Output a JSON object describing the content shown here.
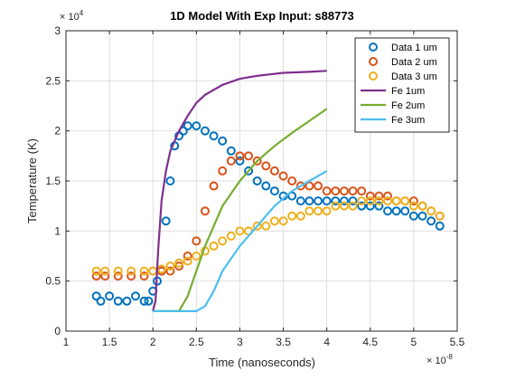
{
  "chart_data": {
    "type": "scatter",
    "title": "1D Model With Exp Input: s88773",
    "xlabel": "Time (nanoseconds)",
    "ylabel": "Temperature (K)",
    "x_multiplier_label": "× 10",
    "x_multiplier_exp": "-8",
    "y_multiplier_label": "× 10",
    "y_multiplier_exp": "4",
    "xlim": [
      1,
      5.5
    ],
    "ylim": [
      0,
      3
    ],
    "xticks": [
      1,
      1.5,
      2,
      2.5,
      3,
      3.5,
      4,
      4.5,
      5,
      5.5
    ],
    "xtick_labels": [
      "1",
      "1.5",
      "2",
      "2.5",
      "3",
      "3.5",
      "4",
      "4.5",
      "5",
      "5.5"
    ],
    "yticks": [
      0,
      0.5,
      1,
      1.5,
      2,
      2.5,
      3
    ],
    "ytick_labels": [
      "0",
      "0.5",
      "1",
      "1.5",
      "2",
      "2.5",
      "3"
    ],
    "grid": true,
    "legend_position": "top-right",
    "series": [
      {
        "name": "Data 1 um",
        "kind": "markers",
        "color": "#0072BD",
        "points": [
          [
            1.35,
            0.35
          ],
          [
            1.4,
            0.3
          ],
          [
            1.5,
            0.35
          ],
          [
            1.6,
            0.3
          ],
          [
            1.7,
            0.3
          ],
          [
            1.8,
            0.35
          ],
          [
            1.9,
            0.3
          ],
          [
            1.95,
            0.3
          ],
          [
            2.0,
            0.4
          ],
          [
            2.05,
            0.5
          ],
          [
            2.1,
            0.6
          ],
          [
            2.15,
            1.1
          ],
          [
            2.2,
            1.5
          ],
          [
            2.25,
            1.85
          ],
          [
            2.3,
            1.95
          ],
          [
            2.35,
            2.0
          ],
          [
            2.4,
            2.05
          ],
          [
            2.5,
            2.05
          ],
          [
            2.6,
            2.0
          ],
          [
            2.7,
            1.95
          ],
          [
            2.8,
            1.9
          ],
          [
            2.9,
            1.8
          ],
          [
            3.0,
            1.7
          ],
          [
            3.1,
            1.6
          ],
          [
            3.2,
            1.5
          ],
          [
            3.3,
            1.45
          ],
          [
            3.4,
            1.4
          ],
          [
            3.5,
            1.35
          ],
          [
            3.6,
            1.35
          ],
          [
            3.7,
            1.3
          ],
          [
            3.8,
            1.3
          ],
          [
            3.9,
            1.3
          ],
          [
            4.0,
            1.3
          ],
          [
            4.1,
            1.3
          ],
          [
            4.2,
            1.3
          ],
          [
            4.3,
            1.3
          ],
          [
            4.4,
            1.25
          ],
          [
            4.5,
            1.25
          ],
          [
            4.6,
            1.25
          ],
          [
            4.7,
            1.2
          ],
          [
            4.8,
            1.2
          ],
          [
            4.9,
            1.2
          ],
          [
            5.0,
            1.15
          ],
          [
            5.1,
            1.15
          ],
          [
            5.2,
            1.1
          ],
          [
            5.3,
            1.05
          ]
        ]
      },
      {
        "name": "Data 2 um",
        "kind": "markers",
        "color": "#D95319",
        "points": [
          [
            1.35,
            0.55
          ],
          [
            1.45,
            0.55
          ],
          [
            1.6,
            0.55
          ],
          [
            1.75,
            0.55
          ],
          [
            1.9,
            0.55
          ],
          [
            2.0,
            0.6
          ],
          [
            2.1,
            0.6
          ],
          [
            2.2,
            0.6
          ],
          [
            2.3,
            0.65
          ],
          [
            2.4,
            0.75
          ],
          [
            2.5,
            0.9
          ],
          [
            2.6,
            1.2
          ],
          [
            2.7,
            1.45
          ],
          [
            2.8,
            1.6
          ],
          [
            2.9,
            1.7
          ],
          [
            3.0,
            1.75
          ],
          [
            3.1,
            1.75
          ],
          [
            3.2,
            1.7
          ],
          [
            3.3,
            1.65
          ],
          [
            3.4,
            1.6
          ],
          [
            3.5,
            1.55
          ],
          [
            3.6,
            1.5
          ],
          [
            3.7,
            1.45
          ],
          [
            3.8,
            1.45
          ],
          [
            3.9,
            1.45
          ],
          [
            4.0,
            1.4
          ],
          [
            4.1,
            1.4
          ],
          [
            4.2,
            1.4
          ],
          [
            4.3,
            1.4
          ],
          [
            4.4,
            1.4
          ],
          [
            4.5,
            1.35
          ],
          [
            4.6,
            1.35
          ],
          [
            4.7,
            1.35
          ],
          [
            4.8,
            1.3
          ],
          [
            4.9,
            1.3
          ],
          [
            5.0,
            1.3
          ],
          [
            5.1,
            1.25
          ],
          [
            5.2,
            1.2
          ],
          [
            5.3,
            1.15
          ]
        ]
      },
      {
        "name": "Data 3 um",
        "kind": "markers",
        "color": "#EDB120",
        "points": [
          [
            1.35,
            0.6
          ],
          [
            1.45,
            0.6
          ],
          [
            1.6,
            0.6
          ],
          [
            1.75,
            0.6
          ],
          [
            1.9,
            0.6
          ],
          [
            2.0,
            0.6
          ],
          [
            2.1,
            0.62
          ],
          [
            2.2,
            0.65
          ],
          [
            2.3,
            0.68
          ],
          [
            2.4,
            0.7
          ],
          [
            2.5,
            0.75
          ],
          [
            2.6,
            0.8
          ],
          [
            2.7,
            0.85
          ],
          [
            2.8,
            0.9
          ],
          [
            2.9,
            0.95
          ],
          [
            3.0,
            1.0
          ],
          [
            3.1,
            1.0
          ],
          [
            3.2,
            1.05
          ],
          [
            3.3,
            1.05
          ],
          [
            3.4,
            1.1
          ],
          [
            3.5,
            1.1
          ],
          [
            3.6,
            1.15
          ],
          [
            3.7,
            1.15
          ],
          [
            3.8,
            1.2
          ],
          [
            3.9,
            1.2
          ],
          [
            4.0,
            1.2
          ],
          [
            4.1,
            1.25
          ],
          [
            4.2,
            1.25
          ],
          [
            4.3,
            1.25
          ],
          [
            4.4,
            1.3
          ],
          [
            4.5,
            1.3
          ],
          [
            4.6,
            1.3
          ],
          [
            4.7,
            1.3
          ],
          [
            4.8,
            1.3
          ],
          [
            4.9,
            1.3
          ],
          [
            5.0,
            1.25
          ],
          [
            5.1,
            1.25
          ],
          [
            5.2,
            1.2
          ],
          [
            5.3,
            1.15
          ]
        ]
      },
      {
        "name": "Fe 1um",
        "kind": "line",
        "color": "#7E2F8E",
        "points": [
          [
            2.0,
            0.2
          ],
          [
            2.03,
            0.3
          ],
          [
            2.06,
            0.8
          ],
          [
            2.1,
            1.3
          ],
          [
            2.15,
            1.6
          ],
          [
            2.2,
            1.8
          ],
          [
            2.3,
            2.0
          ],
          [
            2.4,
            2.15
          ],
          [
            2.5,
            2.28
          ],
          [
            2.6,
            2.36
          ],
          [
            2.8,
            2.46
          ],
          [
            3.0,
            2.52
          ],
          [
            3.2,
            2.55
          ],
          [
            3.5,
            2.58
          ],
          [
            3.8,
            2.59
          ],
          [
            4.0,
            2.6
          ]
        ]
      },
      {
        "name": "Fe 2um",
        "kind": "line",
        "color": "#77AC30",
        "points": [
          [
            2.0,
            0.2
          ],
          [
            2.3,
            0.2
          ],
          [
            2.4,
            0.35
          ],
          [
            2.5,
            0.6
          ],
          [
            2.6,
            0.85
          ],
          [
            2.7,
            1.05
          ],
          [
            2.8,
            1.25
          ],
          [
            3.0,
            1.5
          ],
          [
            3.2,
            1.7
          ],
          [
            3.4,
            1.85
          ],
          [
            3.6,
            1.98
          ],
          [
            3.8,
            2.1
          ],
          [
            4.0,
            2.22
          ]
        ]
      },
      {
        "name": "Fe 3um",
        "kind": "line",
        "color": "#4DBEEE",
        "points": [
          [
            2.0,
            0.2
          ],
          [
            2.5,
            0.2
          ],
          [
            2.6,
            0.25
          ],
          [
            2.7,
            0.4
          ],
          [
            2.8,
            0.6
          ],
          [
            3.0,
            0.85
          ],
          [
            3.2,
            1.05
          ],
          [
            3.4,
            1.25
          ],
          [
            3.6,
            1.4
          ],
          [
            3.8,
            1.5
          ],
          [
            4.0,
            1.6
          ]
        ]
      }
    ]
  }
}
